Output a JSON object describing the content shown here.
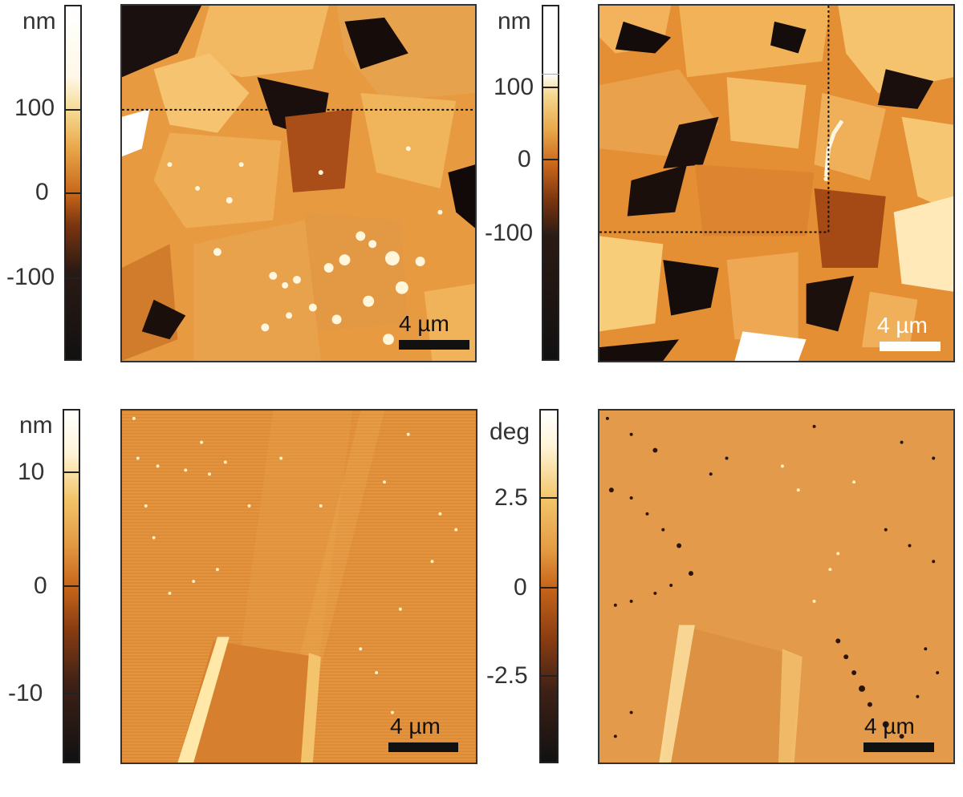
{
  "panels": {
    "top_left": {
      "unit": "nm",
      "ticks": [
        "100",
        "0",
        "-100"
      ],
      "scalebar": "4 µm",
      "scalebar_color": "#111111"
    },
    "top_right": {
      "unit": "nm",
      "ticks": [
        "100",
        "0",
        "-100"
      ],
      "scalebar": "4 µm",
      "scalebar_color": "#ffffff"
    },
    "bottom_left": {
      "unit": "nm",
      "ticks": [
        "10",
        "0",
        "-10"
      ],
      "scalebar": "4 µm",
      "scalebar_color": "#111111"
    },
    "bottom_right": {
      "unit": "deg",
      "ticks": [
        "2.5",
        "0",
        "-2.5"
      ],
      "scalebar": "4 µm",
      "scalebar_color": "#111111"
    }
  },
  "colormap": {
    "dark": "#1a1412",
    "mid": "#c8661a",
    "light": "#f3c56a",
    "white": "#fffaf0"
  }
}
